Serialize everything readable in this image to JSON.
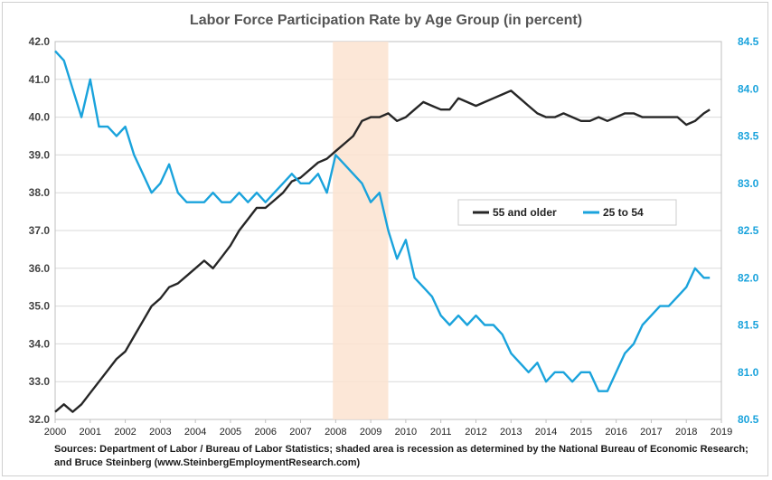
{
  "chart_data": {
    "type": "line",
    "title": "Labor Force Participation Rate by Age Group (in percent)",
    "xlim": [
      2000,
      2019
    ],
    "x_ticks": [
      "2000",
      "2001",
      "2002",
      "2003",
      "2004",
      "2005",
      "2006",
      "2007",
      "2008",
      "2009",
      "2010",
      "2011",
      "2012",
      "2013",
      "2014",
      "2015",
      "2016",
      "2017",
      "2018",
      "2019"
    ],
    "y_left": {
      "range": [
        32.0,
        42.0
      ],
      "ticks": [
        "32.0",
        "33.0",
        "34.0",
        "35.0",
        "36.0",
        "37.0",
        "38.0",
        "39.0",
        "40.0",
        "41.0",
        "42.0"
      ]
    },
    "y_right": {
      "range": [
        80.5,
        84.5
      ],
      "ticks": [
        "80.5",
        "81.0",
        "81.5",
        "82.0",
        "82.5",
        "83.0",
        "83.5",
        "84.0",
        "84.5"
      ]
    },
    "recession": {
      "start": 2007.92,
      "end": 2009.5
    },
    "legend_position": "center-right",
    "series": [
      {
        "name": "55 and older",
        "axis": "left",
        "color": "#262626",
        "points": [
          [
            2000,
            32.2
          ],
          [
            2000.25,
            32.4
          ],
          [
            2000.5,
            32.2
          ],
          [
            2000.75,
            32.4
          ],
          [
            2001,
            32.7
          ],
          [
            2001.25,
            33.0
          ],
          [
            2001.5,
            33.3
          ],
          [
            2001.75,
            33.6
          ],
          [
            2002,
            33.8
          ],
          [
            2002.25,
            34.2
          ],
          [
            2002.5,
            34.6
          ],
          [
            2002.75,
            35.0
          ],
          [
            2003,
            35.2
          ],
          [
            2003.25,
            35.5
          ],
          [
            2003.5,
            35.6
          ],
          [
            2003.75,
            35.8
          ],
          [
            2004,
            36.0
          ],
          [
            2004.25,
            36.2
          ],
          [
            2004.5,
            36.0
          ],
          [
            2004.75,
            36.3
          ],
          [
            2005,
            36.6
          ],
          [
            2005.25,
            37.0
          ],
          [
            2005.5,
            37.3
          ],
          [
            2005.75,
            37.6
          ],
          [
            2006,
            37.6
          ],
          [
            2006.25,
            37.8
          ],
          [
            2006.5,
            38.0
          ],
          [
            2006.75,
            38.3
          ],
          [
            2007,
            38.4
          ],
          [
            2007.25,
            38.6
          ],
          [
            2007.5,
            38.8
          ],
          [
            2007.75,
            38.9
          ],
          [
            2008,
            39.1
          ],
          [
            2008.25,
            39.3
          ],
          [
            2008.5,
            39.5
          ],
          [
            2008.75,
            39.9
          ],
          [
            2009,
            40.0
          ],
          [
            2009.25,
            40.0
          ],
          [
            2009.5,
            40.1
          ],
          [
            2009.75,
            39.9
          ],
          [
            2010,
            40.0
          ],
          [
            2010.25,
            40.2
          ],
          [
            2010.5,
            40.4
          ],
          [
            2010.75,
            40.3
          ],
          [
            2011,
            40.2
          ],
          [
            2011.25,
            40.2
          ],
          [
            2011.5,
            40.5
          ],
          [
            2011.75,
            40.4
          ],
          [
            2012,
            40.3
          ],
          [
            2012.25,
            40.4
          ],
          [
            2012.5,
            40.5
          ],
          [
            2012.75,
            40.6
          ],
          [
            2013,
            40.7
          ],
          [
            2013.25,
            40.5
          ],
          [
            2013.5,
            40.3
          ],
          [
            2013.75,
            40.1
          ],
          [
            2014,
            40.0
          ],
          [
            2014.25,
            40.0
          ],
          [
            2014.5,
            40.1
          ],
          [
            2014.75,
            40.0
          ],
          [
            2015,
            39.9
          ],
          [
            2015.25,
            39.9
          ],
          [
            2015.5,
            40.0
          ],
          [
            2015.75,
            39.9
          ],
          [
            2016,
            40.0
          ],
          [
            2016.25,
            40.1
          ],
          [
            2016.5,
            40.1
          ],
          [
            2016.75,
            40.0
          ],
          [
            2017,
            40.0
          ],
          [
            2017.25,
            40.0
          ],
          [
            2017.5,
            40.0
          ],
          [
            2017.75,
            40.0
          ],
          [
            2018,
            39.8
          ],
          [
            2018.25,
            39.9
          ],
          [
            2018.5,
            40.1
          ],
          [
            2018.67,
            40.2
          ]
        ]
      },
      {
        "name": "25 to 54",
        "axis": "right",
        "color": "#1aa3dc",
        "points": [
          [
            2000,
            84.4
          ],
          [
            2000.25,
            84.3
          ],
          [
            2000.5,
            84.0
          ],
          [
            2000.75,
            83.7
          ],
          [
            2001,
            84.1
          ],
          [
            2001.25,
            83.6
          ],
          [
            2001.5,
            83.6
          ],
          [
            2001.75,
            83.5
          ],
          [
            2002,
            83.6
          ],
          [
            2002.25,
            83.3
          ],
          [
            2002.5,
            83.1
          ],
          [
            2002.75,
            82.9
          ],
          [
            2003,
            83.0
          ],
          [
            2003.25,
            83.2
          ],
          [
            2003.5,
            82.9
          ],
          [
            2003.75,
            82.8
          ],
          [
            2004,
            82.8
          ],
          [
            2004.25,
            82.8
          ],
          [
            2004.5,
            82.9
          ],
          [
            2004.75,
            82.8
          ],
          [
            2005,
            82.8
          ],
          [
            2005.25,
            82.9
          ],
          [
            2005.5,
            82.8
          ],
          [
            2005.75,
            82.9
          ],
          [
            2006,
            82.8
          ],
          [
            2006.25,
            82.9
          ],
          [
            2006.5,
            83.0
          ],
          [
            2006.75,
            83.1
          ],
          [
            2007,
            83.0
          ],
          [
            2007.25,
            83.0
          ],
          [
            2007.5,
            83.1
          ],
          [
            2007.75,
            82.9
          ],
          [
            2008,
            83.3
          ],
          [
            2008.25,
            83.2
          ],
          [
            2008.5,
            83.1
          ],
          [
            2008.75,
            83.0
          ],
          [
            2009,
            82.8
          ],
          [
            2009.25,
            82.9
          ],
          [
            2009.5,
            82.5
          ],
          [
            2009.75,
            82.2
          ],
          [
            2010,
            82.4
          ],
          [
            2010.25,
            82.0
          ],
          [
            2010.5,
            81.9
          ],
          [
            2010.75,
            81.8
          ],
          [
            2011,
            81.6
          ],
          [
            2011.25,
            81.5
          ],
          [
            2011.5,
            81.6
          ],
          [
            2011.75,
            81.5
          ],
          [
            2012,
            81.6
          ],
          [
            2012.25,
            81.5
          ],
          [
            2012.5,
            81.5
          ],
          [
            2012.75,
            81.4
          ],
          [
            2013,
            81.2
          ],
          [
            2013.25,
            81.1
          ],
          [
            2013.5,
            81.0
          ],
          [
            2013.75,
            81.1
          ],
          [
            2014,
            80.9
          ],
          [
            2014.25,
            81.0
          ],
          [
            2014.5,
            81.0
          ],
          [
            2014.75,
            80.9
          ],
          [
            2015,
            81.0
          ],
          [
            2015.25,
            81.0
          ],
          [
            2015.5,
            80.8
          ],
          [
            2015.75,
            80.8
          ],
          [
            2016,
            81.0
          ],
          [
            2016.25,
            81.2
          ],
          [
            2016.5,
            81.3
          ],
          [
            2016.75,
            81.5
          ],
          [
            2017,
            81.6
          ],
          [
            2017.25,
            81.7
          ],
          [
            2017.5,
            81.7
          ],
          [
            2017.75,
            81.8
          ],
          [
            2018,
            81.9
          ],
          [
            2018.25,
            82.1
          ],
          [
            2018.5,
            82.0
          ],
          [
            2018.67,
            82.0
          ]
        ]
      }
    ],
    "source_text": "Sources: Department of Labor / Bureau of Labor Statistics; shaded area is recession as determined by the National Bureau of Economic Research; and Bruce Steinberg (www.SteinbergEmploymentResearch.com)"
  }
}
